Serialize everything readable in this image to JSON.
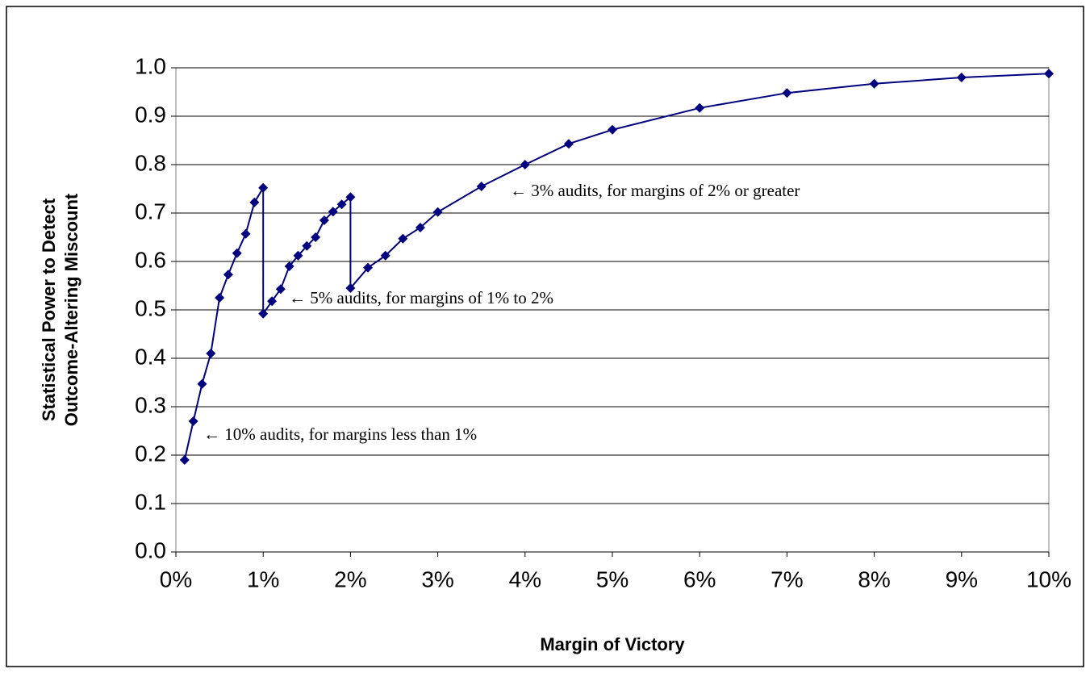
{
  "chart_data": {
    "type": "line",
    "xlabel": "Margin of Victory",
    "ylabel": [
      "Statistical Power to Detect",
      "Outcome-Altering Miscount"
    ],
    "x": [
      0.1,
      0.2,
      0.3,
      0.4,
      0.5,
      0.6,
      0.7,
      0.8,
      0.9,
      1.0,
      1.0,
      1.1,
      1.2,
      1.3,
      1.4,
      1.5,
      1.6,
      1.7,
      1.8,
      1.9,
      2.0,
      2.0,
      2.2,
      2.4,
      2.6,
      2.8,
      3.0,
      3.5,
      4.0,
      4.5,
      5.0,
      6.0,
      7.0,
      8.0,
      9.0,
      10.0
    ],
    "series": [
      {
        "color": "#000080",
        "values": [
          0.19,
          0.27,
          0.347,
          0.41,
          0.525,
          0.573,
          0.617,
          0.657,
          0.722,
          0.752,
          0.492,
          0.518,
          0.543,
          0.59,
          0.612,
          0.632,
          0.65,
          0.685,
          0.703,
          0.718,
          0.733,
          0.545,
          0.587,
          0.612,
          0.647,
          0.67,
          0.702,
          0.755,
          0.8,
          0.843,
          0.872,
          0.917,
          0.948,
          0.967,
          0.98,
          0.988
        ]
      }
    ],
    "xlim": [
      0,
      10
    ],
    "xticks": [
      {
        "value": 0,
        "label": "0%"
      },
      {
        "value": 1,
        "label": "1%"
      },
      {
        "value": 2,
        "label": "2%"
      },
      {
        "value": 3,
        "label": "3%"
      },
      {
        "value": 4,
        "label": "4%"
      },
      {
        "value": 5,
        "label": "5%"
      },
      {
        "value": 6,
        "label": "6%"
      },
      {
        "value": 7,
        "label": "7%"
      },
      {
        "value": 8,
        "label": "8%"
      },
      {
        "value": 9,
        "label": "9%"
      },
      {
        "value": 10,
        "label": "10%"
      }
    ],
    "ylim": [
      0,
      1
    ],
    "yticks": [
      {
        "value": 0,
        "label": "0.0"
      },
      0.1,
      0.2,
      0.3,
      0.4,
      0.5,
      0.6,
      0.7,
      0.8,
      0.9,
      {
        "value": 1,
        "label": "1.0"
      }
    ],
    "grid": true,
    "annotations": [
      "← 10% audits, for margins less than 1%",
      "← 5% audits, for margins of 1% to 2%",
      "← 3% audits, for margins of 2% or greater"
    ]
  }
}
